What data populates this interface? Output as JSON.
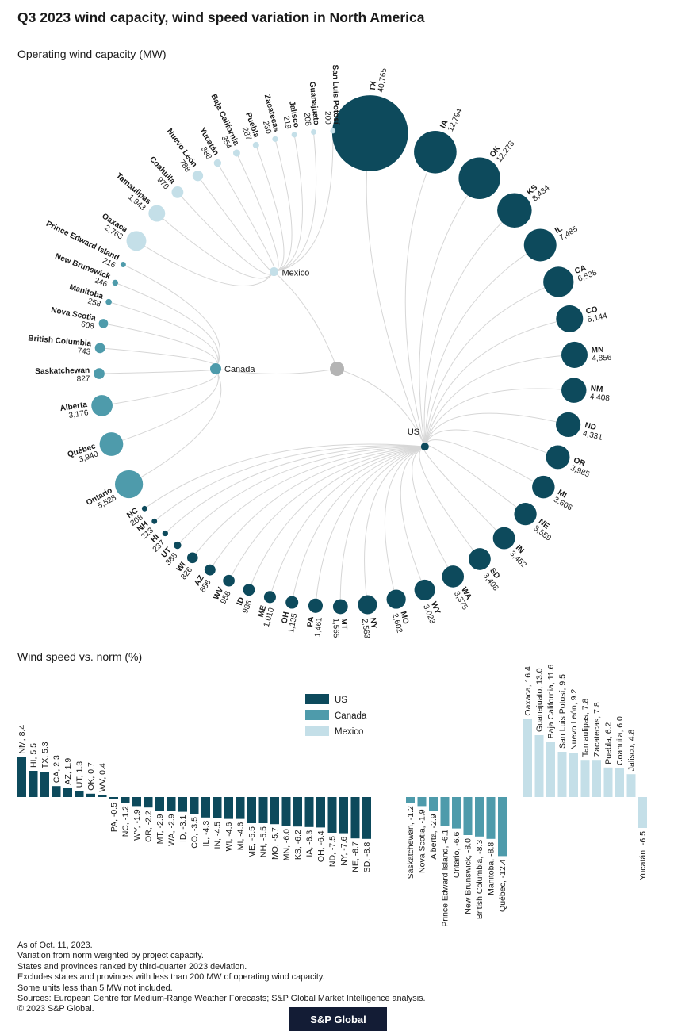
{
  "page_title": "Q3 2023 wind capacity, wind speed variation in North America",
  "logo_text": "S&P Global",
  "colors": {
    "us": "#0d4a5c",
    "canada": "#4e9bab",
    "mexico": "#c4dfe8",
    "link": "#d6d6d6",
    "root": "#b4b4b4",
    "text": "#1a1a1a"
  },
  "chart_data": [
    {
      "type": "radial-bubble-network",
      "title": "Operating wind capacity (MW)",
      "unit": "MW",
      "groups": [
        {
          "name": "US",
          "nodes": [
            [
              "TX",
              40765
            ],
            [
              "IA",
              12794
            ],
            [
              "OK",
              12278
            ],
            [
              "KS",
              8434
            ],
            [
              "IL",
              7485
            ],
            [
              "CA",
              6538
            ],
            [
              "CO",
              5144
            ],
            [
              "MN",
              4856
            ],
            [
              "NM",
              4408
            ],
            [
              "ND",
              4331
            ],
            [
              "OR",
              3985
            ],
            [
              "MI",
              3606
            ],
            [
              "NE",
              3559
            ],
            [
              "IN",
              3452
            ],
            [
              "SD",
              3408
            ],
            [
              "WA",
              3375
            ],
            [
              "WY",
              3023
            ],
            [
              "MO",
              2602
            ],
            [
              "NY",
              2563
            ],
            [
              "MT",
              1565
            ],
            [
              "PA",
              1461
            ],
            [
              "OH",
              1135
            ],
            [
              "ME",
              1010
            ],
            [
              "ID",
              986
            ],
            [
              "WV",
              956
            ],
            [
              "AZ",
              856
            ],
            [
              "WI",
              826
            ],
            [
              "UT",
              388
            ],
            [
              "HI",
              237
            ],
            [
              "NH",
              213
            ],
            [
              "NC",
              208
            ]
          ]
        },
        {
          "name": "Canada",
          "nodes": [
            [
              "Ontario",
              5528
            ],
            [
              "Québec",
              3940
            ],
            [
              "Alberta",
              3176
            ],
            [
              "Saskatchewan",
              827
            ],
            [
              "British Columbia",
              743
            ],
            [
              "Nova Scotia",
              608
            ],
            [
              "Manitoba",
              258
            ],
            [
              "New Brunswick",
              246
            ],
            [
              "Prince Edward Island",
              216
            ]
          ]
        },
        {
          "name": "Mexico",
          "nodes": [
            [
              "Oaxaca",
              2763
            ],
            [
              "Tamaulipas",
              1943
            ],
            [
              "Coahuila",
              970
            ],
            [
              "Nuevo León",
              788
            ],
            [
              "Yucatán",
              388
            ],
            [
              "Baja California",
              354
            ],
            [
              "Puebla",
              287
            ],
            [
              "Zacatecas",
              230
            ],
            [
              "Jalisco",
              219
            ],
            [
              "Guanajuato",
              208
            ],
            [
              "San Luis Potosí",
              200
            ]
          ]
        }
      ]
    },
    {
      "type": "bar",
      "title": "Wind speed vs. norm (%)",
      "legend": [
        "US",
        "Canada",
        "Mexico"
      ],
      "groups": [
        {
          "name": "US",
          "bars": [
            [
              "NM",
              8.4
            ],
            [
              "HI",
              5.5
            ],
            [
              "TX",
              5.3
            ],
            [
              "CA",
              2.3
            ],
            [
              "AZ",
              1.9
            ],
            [
              "UT",
              1.3
            ],
            [
              "OK",
              0.7
            ],
            [
              "WV",
              0.4
            ],
            [
              "PA",
              -0.5
            ],
            [
              "NC",
              -1.2
            ],
            [
              "WY",
              -1.9
            ],
            [
              "OR",
              -2.2
            ],
            [
              "MT",
              -2.9
            ],
            [
              "WA",
              -2.9
            ],
            [
              "ID",
              -3.1
            ],
            [
              "CO",
              -3.5
            ],
            [
              "IL",
              -4.3
            ],
            [
              "IN",
              -4.5
            ],
            [
              "WI",
              -4.6
            ],
            [
              "MI",
              -4.6
            ],
            [
              "ME",
              -5.5
            ],
            [
              "NH",
              -5.5
            ],
            [
              "MO",
              -5.7
            ],
            [
              "MN",
              -6.0
            ],
            [
              "KS",
              -6.2
            ],
            [
              "IA",
              -6.3
            ],
            [
              "OH",
              -6.4
            ],
            [
              "ND",
              -7.5
            ],
            [
              "NY",
              -7.6
            ],
            [
              "NE",
              -8.7
            ],
            [
              "SD",
              -8.8
            ]
          ]
        },
        {
          "name": "Canada",
          "bars": [
            [
              "Saskatchewan",
              -1.2
            ],
            [
              "Nova Scotia",
              -1.9
            ],
            [
              "Alberta",
              -2.9
            ],
            [
              "Prince Edward Island",
              -6.1
            ],
            [
              "Ontario",
              -6.6
            ],
            [
              "New Brunswick",
              -8.0
            ],
            [
              "British Columbia",
              -8.3
            ],
            [
              "Manitoba",
              -8.8
            ],
            [
              "Québec",
              -12.4
            ]
          ]
        },
        {
          "name": "Mexico",
          "bars": [
            [
              "Oaxaca",
              16.4
            ],
            [
              "Guanajuato",
              13.0
            ],
            [
              "Baja California",
              11.6
            ],
            [
              "San Luis Potosí",
              9.5
            ],
            [
              "Nuevo León",
              9.2
            ],
            [
              "Tamaulipas",
              7.8
            ],
            [
              "Zacatecas",
              7.8
            ],
            [
              "Puebla",
              6.2
            ],
            [
              "Coahuila",
              6.0
            ],
            [
              "Jalisco",
              4.8
            ],
            [
              "Yucatán",
              -6.5
            ]
          ]
        }
      ]
    }
  ],
  "footnotes": [
    "As of Oct. 11, 2023.",
    "Variation from norm weighted by project capacity.",
    "States and provinces ranked by third-quarter 2023 deviation.",
    "Excludes states and provinces with less than 200 MW of operating wind capacity.",
    "Some units less than 5 MW not included.",
    "Sources: European Centre for Medium-Range Weather Forecasts; S&P Global Market Intelligence analysis.",
    "© 2023 S&P Global."
  ]
}
